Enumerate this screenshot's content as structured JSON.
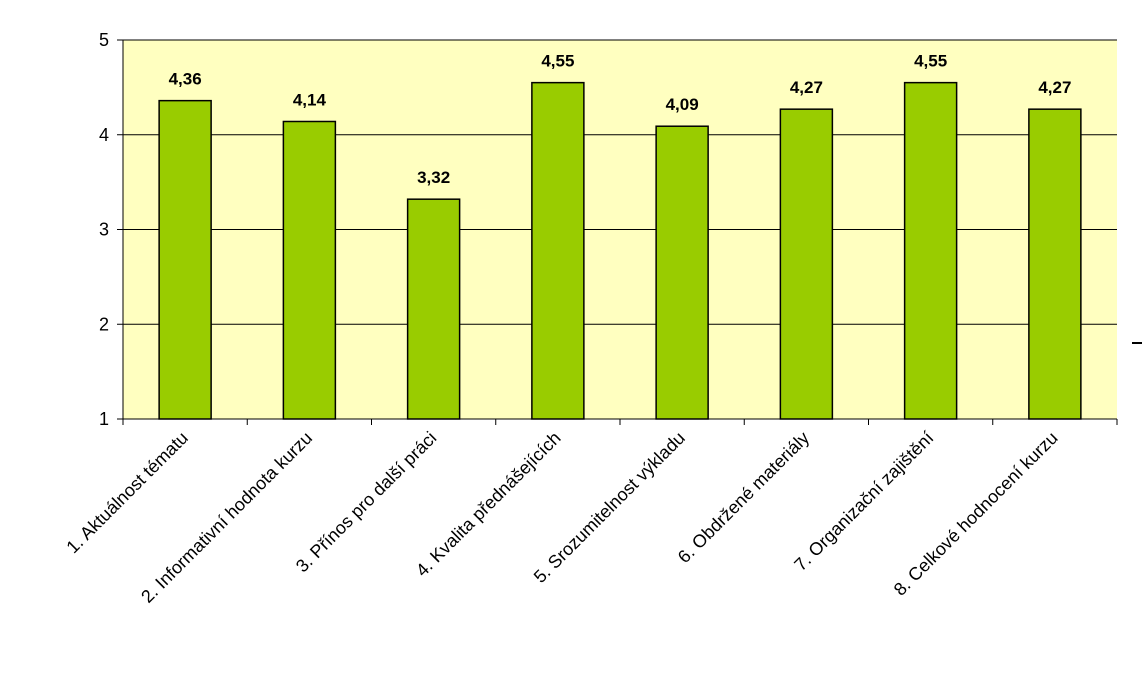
{
  "chart_data": {
    "type": "bar",
    "title": "",
    "xlabel": "",
    "ylabel": "",
    "categories": [
      "1. Aktuálnost tématu",
      "2. Informativní hodnota kurzu",
      "3. Přínos pro další práci",
      "4. Kvalita přednášejících",
      "5. Srozumitelnost výkladu",
      "6. Obdržené materiály",
      "7. Organizační zajištění",
      "8. Celkové hodnocení kurzu"
    ],
    "values": [
      4.36,
      4.14,
      3.32,
      4.55,
      4.09,
      4.27,
      4.55,
      4.27
    ],
    "value_labels": [
      "4,36",
      "4,14",
      "3,32",
      "4,55",
      "4,09",
      "4,27",
      "4,55",
      "4,27"
    ],
    "yticks": [
      "1",
      "2",
      "3",
      "4",
      "5"
    ],
    "ylim": [
      1,
      5
    ],
    "grid": true,
    "legend": "none",
    "colors": {
      "plot_background": "#ffffc0",
      "bar_fill": "#99cc00",
      "bar_stroke": "#000000",
      "gridline": "#000000"
    }
  }
}
